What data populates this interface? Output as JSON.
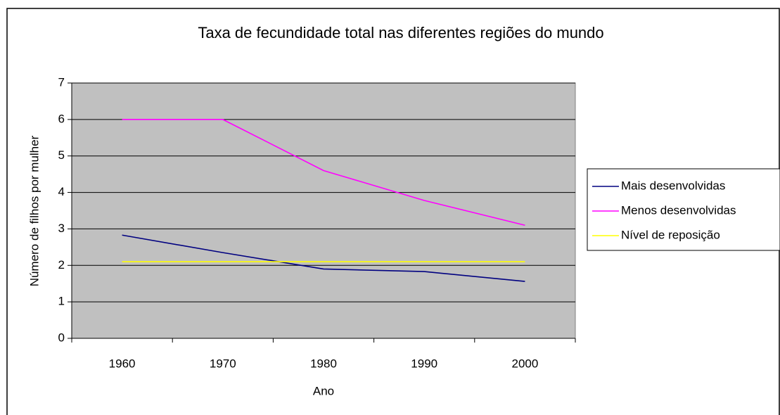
{
  "chart_data": {
    "type": "line",
    "title": "Taxa de fecundidade total nas diferentes regiões do mundo",
    "x_label": "Ano",
    "y_label": "Número de filhos por mulher",
    "categories": [
      "1960",
      "1970",
      "1980",
      "1990",
      "2000"
    ],
    "series": [
      {
        "name": "Mais desenvolvidas",
        "color": "#000080",
        "values": [
          2.83,
          2.35,
          1.9,
          1.83,
          1.56
        ]
      },
      {
        "name": "Menos desenvolvidas",
        "color": "#ff00ff",
        "values": [
          6,
          6,
          4.6,
          3.78,
          3.1
        ]
      },
      {
        "name": "Nível de reposição",
        "color": "#ffff00",
        "values": [
          2.1,
          2.1,
          2.1,
          2.1,
          2.1
        ]
      }
    ],
    "ylim": [
      0,
      7
    ],
    "yticks": [
      0,
      1,
      2,
      3,
      4,
      5,
      6,
      7
    ],
    "grid": true,
    "plot_background": "#c0c0c0",
    "legend": "right"
  }
}
